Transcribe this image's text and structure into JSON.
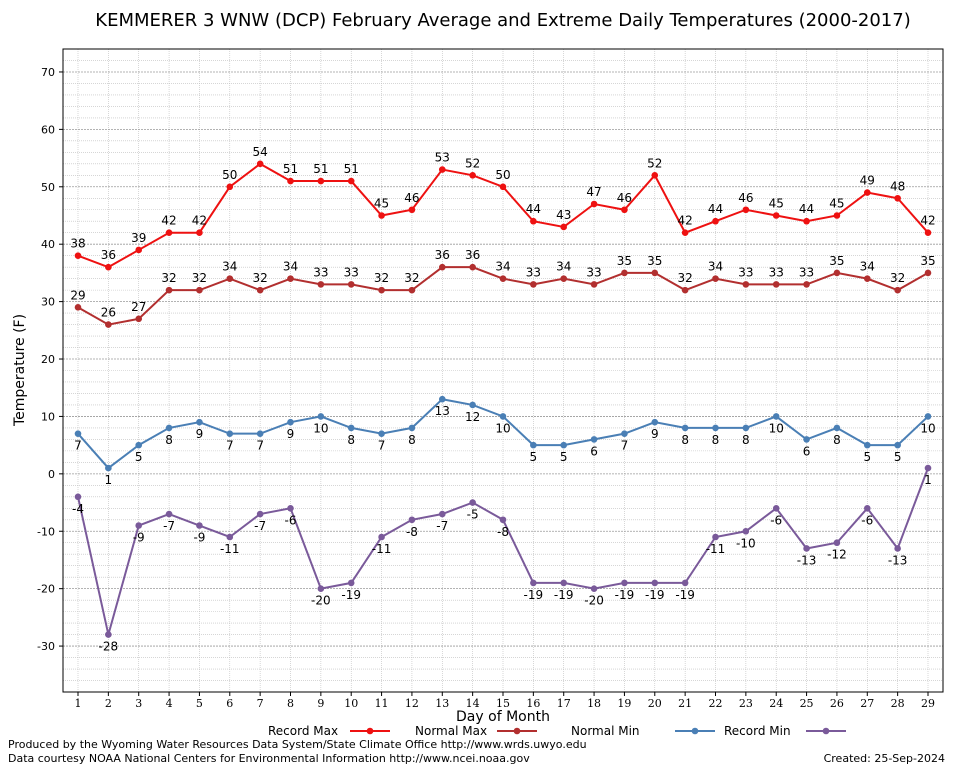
{
  "chart_data": {
    "type": "line",
    "title": "KEMMERER 3 WNW (DCP) February Average and Extreme Daily Temperatures (2000-2017)",
    "xlabel": "Day of Month",
    "ylabel": "Temperature (F)",
    "ylim": [
      -38,
      74
    ],
    "yticks": [
      -30,
      -20,
      -10,
      0,
      10,
      20,
      30,
      40,
      50,
      60,
      70
    ],
    "grid": true,
    "legend_position": "bottom",
    "categories": [
      1,
      2,
      3,
      4,
      5,
      6,
      7,
      8,
      9,
      10,
      11,
      12,
      13,
      14,
      15,
      16,
      17,
      18,
      19,
      20,
      21,
      22,
      23,
      24,
      25,
      26,
      27,
      28,
      29
    ],
    "series": [
      {
        "name": "Record Max",
        "color": "#ee1111",
        "values": [
          38,
          36,
          39,
          42,
          42,
          50,
          54,
          51,
          51,
          51,
          45,
          46,
          53,
          52,
          50,
          44,
          43,
          47,
          46,
          52,
          42,
          44,
          46,
          45,
          44,
          45,
          49,
          48,
          42
        ]
      },
      {
        "name": "Normal Max",
        "color": "#b22f2f",
        "values": [
          29,
          26,
          27,
          32,
          32,
          34,
          32,
          34,
          33,
          33,
          32,
          32,
          36,
          36,
          34,
          33,
          34,
          33,
          35,
          35,
          32,
          34,
          33,
          33,
          33,
          35,
          34,
          32,
          35
        ]
      },
      {
        "name": "Normal Min",
        "color": "#4a7fb5",
        "values": [
          7,
          1,
          5,
          8,
          9,
          7,
          7,
          9,
          10,
          8,
          7,
          8,
          13,
          12,
          10,
          5,
          5,
          6,
          7,
          9,
          8,
          8,
          8,
          10,
          6,
          8,
          5,
          5,
          10
        ]
      },
      {
        "name": "Record Min",
        "color": "#7a5a9a",
        "values": [
          -4,
          -28,
          -9,
          -7,
          -9,
          -11,
          -7,
          -6,
          -20,
          -19,
          -11,
          -8,
          -7,
          -5,
          -8,
          -19,
          -19,
          -20,
          -19,
          -19,
          -19,
          -11,
          -10,
          -6,
          -13,
          -12,
          -6,
          -13,
          1
        ]
      }
    ]
  },
  "footer": {
    "produced_by": "Produced by the Wyoming Water Resources Data System/State Climate Office http://www.wrds.uwyo.edu",
    "courtesy": "Data courtesy NOAA National Centers for Environmental Information http://www.ncei.noaa.gov",
    "created": "Created:  25-Sep-2024"
  }
}
